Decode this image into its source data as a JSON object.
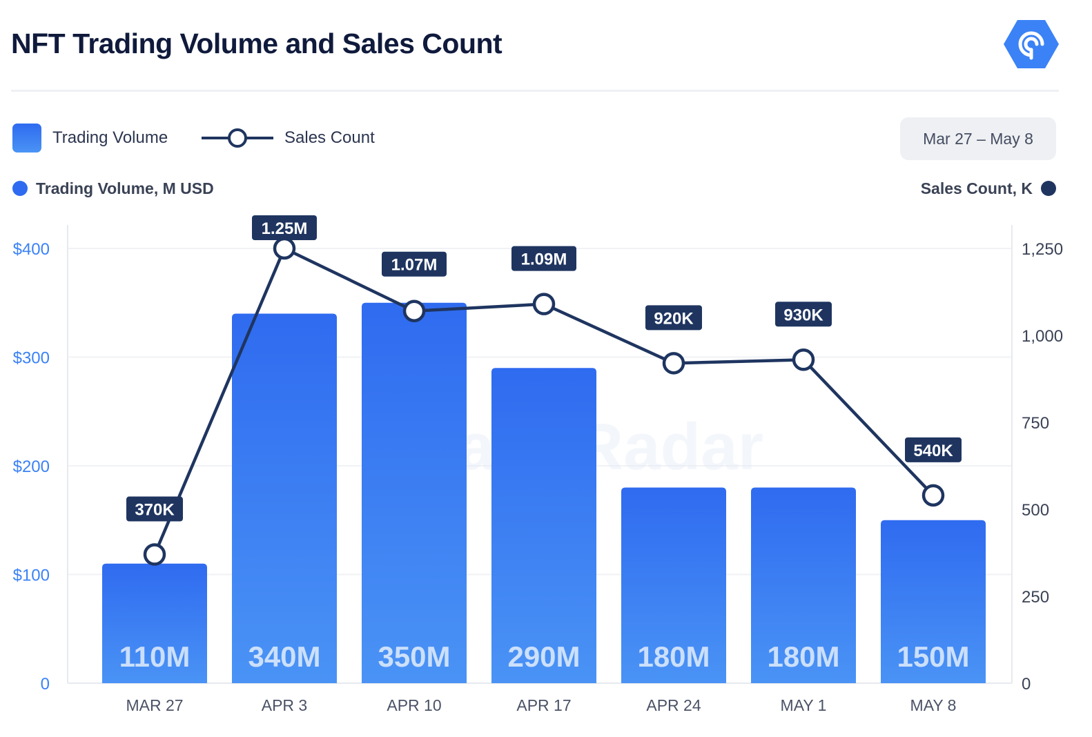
{
  "title": "NFT Trading Volume and Sales Count",
  "legend": {
    "volume_label": "Trading Volume",
    "sales_label": "Sales Count"
  },
  "date_range": "Mar 27 – May 8",
  "axis_names": {
    "left": "Trading Volume, M USD",
    "right": "Sales Count, K"
  },
  "watermark": "DappRadar",
  "colors": {
    "bar_top": "#2f6bf0",
    "bar_bottom": "#4a93f5",
    "line": "#1f3560",
    "left_axis_text": "#3b82f6",
    "left_dot": "#2f6bf0",
    "right_dot": "#1f3560"
  },
  "chart_data": {
    "type": "bar+line",
    "categories": [
      "MAR 27",
      "APR 3",
      "APR 10",
      "APR 17",
      "APR 24",
      "MAY 1",
      "MAY 8"
    ],
    "series": [
      {
        "name": "Trading Volume",
        "type": "bar",
        "axis": "left",
        "values": [
          110,
          340,
          350,
          290,
          180,
          180,
          150
        ],
        "labels": [
          "110M",
          "340M",
          "350M",
          "290M",
          "180M",
          "180M",
          "150M"
        ]
      },
      {
        "name": "Sales Count",
        "type": "line",
        "axis": "right",
        "values": [
          370,
          1250,
          1070,
          1090,
          920,
          930,
          540
        ],
        "labels": [
          "370K",
          "1.25M",
          "1.07M",
          "1.09M",
          "920K",
          "930K",
          "540K"
        ]
      }
    ],
    "y_left": {
      "label": "Trading Volume, M USD",
      "range": [
        0,
        400
      ],
      "ticks": [
        0,
        100,
        200,
        300,
        400
      ],
      "tick_labels": [
        "0",
        "$100",
        "$200",
        "$300",
        "$400"
      ]
    },
    "y_right": {
      "label": "Sales Count, K",
      "range": [
        0,
        1250
      ],
      "ticks": [
        0,
        250,
        500,
        750,
        1000,
        1250
      ],
      "tick_labels": [
        "0",
        "250",
        "500",
        "750",
        "1,000",
        "1,250"
      ]
    },
    "grid": true
  }
}
